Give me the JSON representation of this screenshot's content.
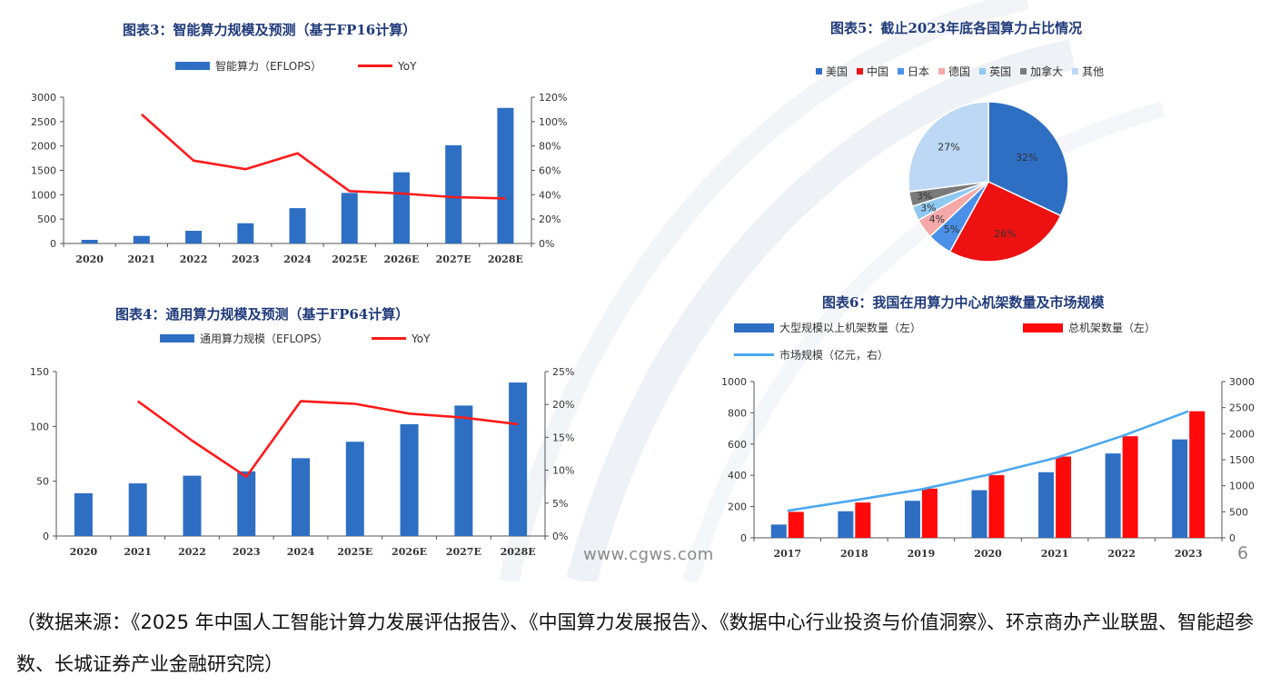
{
  "source_note": "（数据来源：《2025 年中国人工智能计算力发展评估报告》、《中国算力发展报告》、《数据中心行业投资与价值洞察》、环京商办产业联盟、智能超参数、长城证券产业金融研究院）",
  "watermark": "www.cgws.com",
  "page_number": "6",
  "chart_data": [
    {
      "type": "bar",
      "title": "图表3：智能算力规模及预测（基于FP16计算）",
      "categories": [
        "2020",
        "2021",
        "2022",
        "2023",
        "2024",
        "2025E",
        "2026E",
        "2027E",
        "2028E"
      ],
      "series": [
        {
          "name": "智能算力（EFLOPS）",
          "kind": "bar",
          "axis": "left",
          "color": "#2e6fc4",
          "values": [
            75,
            155,
            260,
            415,
            725,
            1037,
            1460,
            2015,
            2781
          ]
        },
        {
          "name": "YoY",
          "kind": "line",
          "axis": "right",
          "color": "#ff1a1a",
          "values": [
            null,
            106,
            68,
            61,
            74,
            43,
            41,
            38,
            37
          ]
        }
      ],
      "ylim": [
        0,
        3000
      ],
      "yticks": [
        "0",
        "500",
        "1000",
        "1500",
        "2000",
        "2500",
        "3000"
      ],
      "y2lim": [
        0,
        120
      ],
      "y2ticks": [
        "0%",
        "20%",
        "40%",
        "60%",
        "80%",
        "100%",
        "120%"
      ]
    },
    {
      "type": "bar",
      "title": "图表4：通用算力规模及预测（基于FP64计算）",
      "categories": [
        "2020",
        "2021",
        "2022",
        "2023",
        "2024",
        "2025E",
        "2026E",
        "2027E",
        "2028E"
      ],
      "series": [
        {
          "name": "通用算力规模（EFLOPS）",
          "kind": "bar",
          "axis": "left",
          "color": "#2e6fc4",
          "values": [
            39,
            48,
            55,
            59,
            71,
            86,
            102,
            119,
            140
          ]
        },
        {
          "name": "YoY",
          "kind": "line",
          "axis": "right",
          "color": "#ff1a1a",
          "values": [
            null,
            20.5,
            14.5,
            9.0,
            20.5,
            20.1,
            18.6,
            18.0,
            17.0
          ]
        }
      ],
      "ylim": [
        0,
        150
      ],
      "yticks": [
        "0",
        "50",
        "100",
        "150"
      ],
      "y2lim": [
        0,
        25
      ],
      "y2ticks": [
        "0%",
        "5%",
        "10%",
        "15%",
        "20%",
        "25%"
      ]
    },
    {
      "type": "pie",
      "title": "图表5：截止2023年底各国算力占比情况",
      "labels": [
        "美国",
        "中国",
        "日本",
        "德国",
        "英国",
        "加拿大",
        "其他"
      ],
      "values": [
        32,
        26,
        5,
        4,
        3,
        3,
        27
      ],
      "value_labels": [
        "32%",
        "26%",
        "5%",
        "4%",
        "3%",
        "3%",
        "27%"
      ],
      "colors": [
        "#2e6fc4",
        "#ee1111",
        "#4a90e8",
        "#f4a8a8",
        "#8fc8f0",
        "#7a7a7a",
        "#bcd8f5"
      ],
      "legend_position": "top"
    },
    {
      "type": "bar",
      "title": "图表6：我国在用算力中心机架数量及市场规模",
      "categories": [
        "2017",
        "2018",
        "2019",
        "2020",
        "2021",
        "2022",
        "2023"
      ],
      "series": [
        {
          "name": "大型规模以上机架数量（左）",
          "kind": "bar",
          "axis": "left",
          "color": "#2e6fc4",
          "values": [
            85,
            170,
            237,
            305,
            420,
            540,
            630
          ]
        },
        {
          "name": "总机架数量（左）",
          "kind": "bar",
          "axis": "left",
          "color": "#ff0a0a",
          "values": [
            166,
            226,
            315,
            401,
            520,
            650,
            810
          ]
        },
        {
          "name": "市场规模（亿元，右）",
          "kind": "line",
          "axis": "right",
          "color": "#4aa8f0",
          "values": [
            520,
            720,
            930,
            1210,
            1530,
            1950,
            2430
          ]
        }
      ],
      "ylim": [
        0,
        1000
      ],
      "yticks": [
        "0",
        "200",
        "400",
        "600",
        "800",
        "1000"
      ],
      "y2lim": [
        0,
        3000
      ],
      "y2ticks": [
        "0",
        "500",
        "1000",
        "1500",
        "2000",
        "2500",
        "3000"
      ]
    }
  ]
}
